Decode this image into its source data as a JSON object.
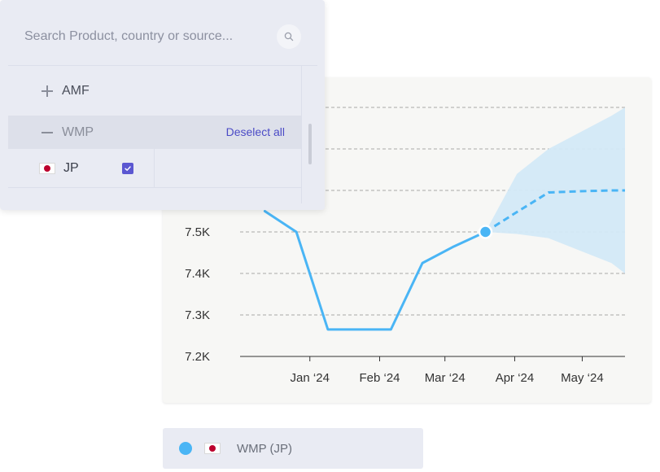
{
  "search": {
    "placeholder": "Search Product, country or source...",
    "value": ""
  },
  "list": {
    "items": [
      {
        "label": "AMF",
        "state": "collapsed",
        "icon": "plus-icon"
      },
      {
        "label": "WMP",
        "state": "expanded",
        "icon": "minus-icon",
        "action_label": "Deselect all"
      }
    ],
    "sub_items": [
      {
        "label": "JP",
        "flag": "japan-flag-icon",
        "checked": true
      }
    ]
  },
  "legend": {
    "items": [
      {
        "label": "WMP (JP)",
        "color": "#4ab5f5",
        "flag": "japan-flag-icon"
      }
    ]
  },
  "colors": {
    "series": "#4ab5f5",
    "forecast_band": "#d3e9f7",
    "accent": "#5b57d1",
    "link": "#4b4bc6"
  },
  "chart_data": {
    "type": "line",
    "y_ticks": [
      "7.2K",
      "7.3K",
      "7.4K",
      "7.5K"
    ],
    "x_ticks": [
      "Jan ‘24",
      "Feb ‘24",
      "Mar ‘24",
      "Apr ‘24",
      "May ‘24"
    ],
    "ylim": [
      7200,
      7800
    ],
    "grid": true,
    "series": [
      {
        "name": "WMP (JP)",
        "color": "#4ab5f5",
        "x": [
          "2023-12-12",
          "2023-12-26",
          "2024-01-09",
          "2024-01-23",
          "2024-02-06",
          "2024-02-20",
          "2024-03-05",
          "2024-03-19"
        ],
        "y": [
          7550,
          7500,
          7265,
          7265,
          7265,
          7425,
          7465,
          7500
        ]
      }
    ],
    "forecast": {
      "x": [
        "2024-03-19",
        "2024-04-02",
        "2024-04-16",
        "2024-04-30",
        "2024-05-14",
        "2024-05-20"
      ],
      "y": [
        7500,
        7548,
        7595,
        7598,
        7600,
        7600
      ],
      "upper": [
        7500,
        7640,
        7700,
        7740,
        7780,
        7800
      ],
      "lower": [
        7500,
        7495,
        7485,
        7455,
        7425,
        7400
      ]
    },
    "highlight_point": {
      "x": "2024-03-19",
      "y": 7500
    }
  }
}
